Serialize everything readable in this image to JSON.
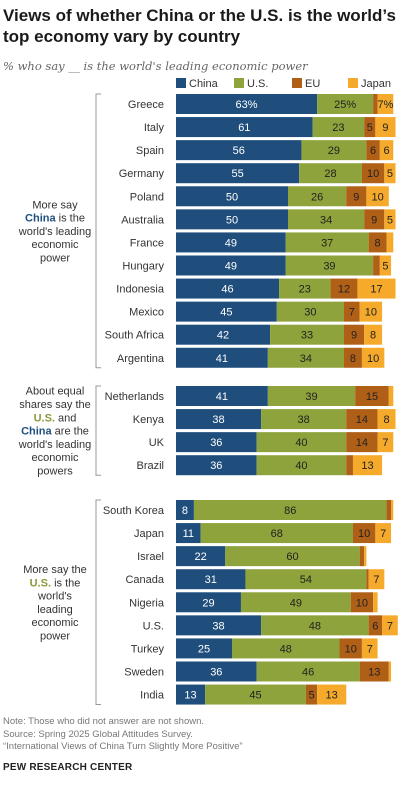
{
  "title": "Views of whether China or the U.S. is the world’s top economy vary by country",
  "subtitle": "% who say __ is the world's leading economic power",
  "footer": {
    "note": "Note: Those who did not answer are not shown.",
    "source": "Source: Spring 2025 Global Attitudes Survey.",
    "report": "“International Views of China Turn Slightly More Positive”"
  },
  "brand": "PEW RESEARCH CENTER",
  "colors": {
    "China": "#1f4e7d",
    "U.S.": "#8ea33b",
    "EU": "#b05f17",
    "Japan": "#f5aa2b"
  },
  "chart_data": {
    "type": "bar",
    "stacked": true,
    "orientation": "horizontal",
    "xlim": [
      0,
      100
    ],
    "legend": [
      "China",
      "U.S.",
      "EU",
      "Japan"
    ],
    "groups": [
      {
        "label_parts": [
          [
            "More say"
          ],
          [
            {
              "t": "China",
              "c": "China"
            },
            " is the"
          ],
          [
            "world's leading"
          ],
          [
            "economic"
          ],
          [
            "power"
          ]
        ],
        "rows": [
          {
            "country": "Greece",
            "values": [
              63,
              25,
              2,
              7
            ],
            "pct": true
          },
          {
            "country": "Italy",
            "values": [
              61,
              23,
              5,
              9
            ]
          },
          {
            "country": "Spain",
            "values": [
              56,
              29,
              6,
              6
            ]
          },
          {
            "country": "Germany",
            "values": [
              55,
              28,
              10,
              5
            ]
          },
          {
            "country": "Poland",
            "values": [
              50,
              26,
              9,
              10
            ]
          },
          {
            "country": "Australia",
            "values": [
              50,
              34,
              9,
              5
            ]
          },
          {
            "country": "France",
            "values": [
              49,
              37,
              8,
              3
            ]
          },
          {
            "country": "Hungary",
            "values": [
              49,
              39,
              3,
              5
            ]
          },
          {
            "country": "Indonesia",
            "values": [
              46,
              23,
              12,
              17
            ]
          },
          {
            "country": "Mexico",
            "values": [
              45,
              30,
              7,
              10
            ]
          },
          {
            "country": "South Africa",
            "values": [
              42,
              33,
              9,
              8
            ]
          },
          {
            "country": "Argentina",
            "values": [
              41,
              34,
              8,
              10
            ]
          }
        ]
      },
      {
        "label_parts": [
          [
            "About equal"
          ],
          [
            "shares say the"
          ],
          [
            {
              "t": "U.S.",
              "c": "U.S."
            },
            " and"
          ],
          [
            {
              "t": "China",
              "c": "China"
            },
            " are the"
          ],
          [
            "world's leading"
          ],
          [
            "economic"
          ],
          [
            "powers"
          ]
        ],
        "rows": [
          {
            "country": "Netherlands",
            "values": [
              41,
              39,
              15,
              2
            ]
          },
          {
            "country": "Kenya",
            "values": [
              38,
              38,
              14,
              8
            ]
          },
          {
            "country": "UK",
            "values": [
              36,
              40,
              14,
              7
            ]
          },
          {
            "country": "Brazil",
            "values": [
              36,
              40,
              3,
              13
            ]
          }
        ]
      },
      {
        "label_parts": [
          [
            "More say the"
          ],
          [
            {
              "t": "U.S.",
              "c": "U.S."
            },
            " is the"
          ],
          [
            "world's"
          ],
          [
            "leading"
          ],
          [
            "economic"
          ],
          [
            "power"
          ]
        ],
        "rows": [
          {
            "country": "South Korea",
            "values": [
              8,
              86,
              2,
              1
            ]
          },
          {
            "country": "Japan",
            "values": [
              11,
              68,
              10,
              7
            ]
          },
          {
            "country": "Israel",
            "values": [
              22,
              60,
              2,
              1
            ]
          },
          {
            "country": "Canada",
            "values": [
              31,
              54,
              1,
              7
            ]
          },
          {
            "country": "Nigeria",
            "values": [
              29,
              49,
              10,
              2
            ]
          },
          {
            "country": "U.S.",
            "values": [
              38,
              48,
              6,
              7
            ]
          },
          {
            "country": "Turkey",
            "values": [
              25,
              48,
              10,
              7
            ]
          },
          {
            "country": "Sweden",
            "values": [
              36,
              46,
              13,
              1
            ]
          },
          {
            "country": "India",
            "values": [
              13,
              45,
              5,
              13
            ]
          }
        ]
      }
    ]
  }
}
